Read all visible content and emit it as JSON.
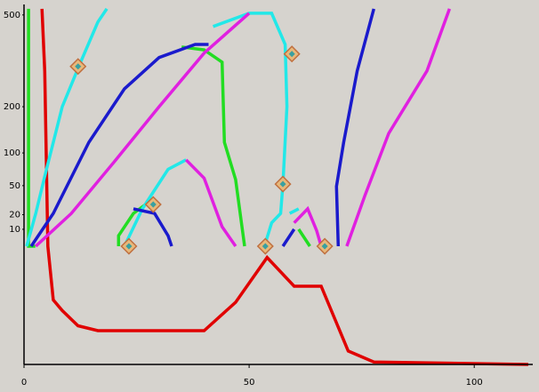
{
  "chart_data": {
    "type": "line",
    "xlim": [
      0,
      113
    ],
    "xticks": [
      0,
      50,
      100
    ],
    "ylim": [
      -80,
      543
    ],
    "yticks": [
      10,
      20,
      50,
      100,
      200,
      500
    ],
    "yscale": "sqrt",
    "series": [
      {
        "color": "#e00000",
        "x": [
          4,
          4.6,
          5.3,
          6.5,
          8.5,
          12,
          16.4,
          40,
          47,
          54,
          60,
          66,
          72,
          77.7,
          112
        ],
        "values": [
          525,
          300,
          2.7,
          -10,
          -17,
          -30,
          -35,
          -35,
          -11.4,
          0.4,
          -3.75,
          -3.75,
          -60,
          -76,
          -80
        ]
      },
      {
        "color": "#22dd22",
        "x": [
          1,
          1,
          2.5,
          null,
          35,
          40,
          44,
          44.5,
          47,
          49,
          null,
          21,
          21,
          24.3,
          27,
          null,
          61,
          63.5
        ],
        "values": [
          525,
          2.7,
          2.7,
          null,
          380,
          370,
          329,
          120,
          58,
          2.7,
          null,
          2.7,
          6.7,
          21,
          29,
          null,
          10,
          2.7
        ]
      },
      {
        "color": "#22e8e8",
        "x": [
          0.6,
          2.6,
          4.5,
          8.5,
          12.4,
          16.4,
          18.4,
          null,
          42,
          50,
          55,
          58,
          58.4,
          57.5,
          57,
          55,
          53.4,
          null,
          22.3,
          26.3,
          32,
          36,
          null,
          59,
          61
        ],
        "values": [
          2.7,
          21,
          60,
          200,
          323,
          472,
          525,
          null,
          455,
          507,
          507,
          389,
          200,
          52,
          21,
          14,
          2.7,
          null,
          2.7,
          25,
          73,
          88,
          null,
          21,
          25
        ]
      },
      {
        "color": "#1a1acc",
        "x": [
          1.6,
          6.5,
          14.4,
          22.3,
          30,
          38,
          41,
          null,
          24.3,
          29,
          32,
          32.8,
          null,
          57.5,
          60,
          null,
          69.8,
          69.4,
          71,
          74,
          77.7
        ],
        "values": [
          2.7,
          21,
          120,
          248,
          344,
          389,
          389,
          null,
          25,
          21,
          6.7,
          2.7,
          null,
          2.7,
          10,
          null,
          2.7,
          49,
          120,
          301,
          525
        ]
      },
      {
        "color": "#e020e0",
        "x": [
          2.6,
          10.5,
          20.4,
          30,
          40,
          50,
          null,
          36,
          40,
          44,
          47,
          null,
          60,
          63,
          65,
          66,
          null,
          71.7,
          75.7,
          81,
          89.5,
          94.5
        ],
        "values": [
          2.7,
          21,
          88,
          200,
          359,
          507,
          null,
          88,
          60,
          11.5,
          2.7,
          null,
          14,
          25,
          9.3,
          2.7,
          null,
          2.7,
          38,
          138,
          301,
          525
        ]
      },
      {
        "type": "scatter",
        "color": "#e8b87a",
        "x": [
          12,
          23.3,
          28.7,
          53.6,
          57.5,
          59.5,
          66.8
        ],
        "values": [
          315,
          2.7,
          29,
          2.7,
          52,
          356,
          2.7
        ]
      }
    ]
  }
}
